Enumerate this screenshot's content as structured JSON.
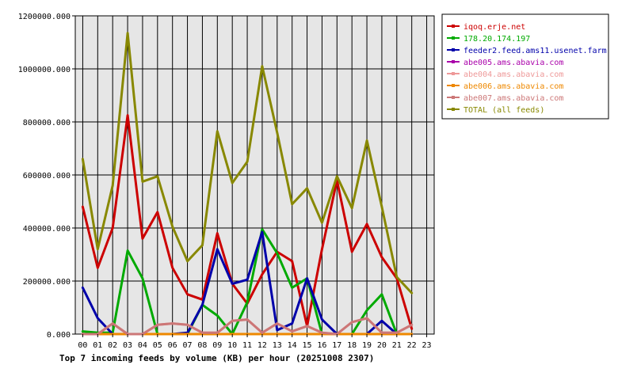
{
  "chart_data": {
    "type": "line",
    "title": "Top 7 incoming feeds by volume (KB) per hour (20251008 2307)",
    "categories": [
      "00",
      "01",
      "02",
      "03",
      "04",
      "05",
      "06",
      "07",
      "08",
      "09",
      "10",
      "11",
      "12",
      "13",
      "14",
      "15",
      "16",
      "17",
      "18",
      "19",
      "20",
      "21",
      "22",
      "23"
    ],
    "y_tick_labels": [
      "0.000",
      "200000.000",
      "400000.000",
      "600000.000",
      "800000.000",
      "1000000.000",
      "1200000.000"
    ],
    "ylim": [
      0,
      1200000
    ],
    "grid": true,
    "legend_position": "right",
    "series": [
      {
        "name": "iqoq.erje.net",
        "color": "#cc0000",
        "values": [
          480000,
          250000,
          400000,
          825000,
          360000,
          460000,
          250000,
          150000,
          130000,
          380000,
          190000,
          115000,
          225000,
          310000,
          275000,
          30000,
          320000,
          580000,
          310000,
          415000,
          290000,
          210000,
          20000,
          null
        ]
      },
      {
        "name": "178.20.174.197",
        "color": "#00aa00",
        "values": [
          10000,
          5000,
          5000,
          315000,
          210000,
          0,
          0,
          0,
          110000,
          70000,
          0,
          120000,
          395000,
          305000,
          175000,
          210000,
          0,
          0,
          0,
          90000,
          150000,
          0,
          0,
          null
        ]
      },
      {
        "name": "feeder2.feed.ams11.usenet.farm",
        "color": "#0000aa",
        "values": [
          175000,
          60000,
          0,
          0,
          0,
          0,
          0,
          5000,
          110000,
          320000,
          190000,
          205000,
          385000,
          15000,
          40000,
          210000,
          55000,
          0,
          0,
          0,
          50000,
          0,
          0,
          null
        ]
      },
      {
        "name": "abe005.ams.abavia.com",
        "color": "#aa00aa",
        "values": [
          0,
          0,
          0,
          0,
          0,
          0,
          0,
          0,
          0,
          0,
          0,
          0,
          0,
          0,
          0,
          0,
          0,
          0,
          0,
          0,
          0,
          0,
          0,
          null
        ]
      },
      {
        "name": "abe004.ams.abavia.com",
        "color": "#ee9999",
        "values": [
          0,
          0,
          40000,
          0,
          0,
          35000,
          40000,
          35000,
          5000,
          5000,
          50000,
          55000,
          5000,
          40000,
          10000,
          30000,
          5000,
          0,
          45000,
          60000,
          5000,
          5000,
          35000,
          null
        ]
      },
      {
        "name": "abe006.ams.abavia.com",
        "color": "#ee8800",
        "values": [
          0,
          0,
          0,
          0,
          0,
          0,
          0,
          0,
          0,
          0,
          0,
          0,
          0,
          0,
          0,
          0,
          0,
          0,
          0,
          0,
          0,
          0,
          0,
          null
        ]
      },
      {
        "name": "abe007.ams.abavia.com",
        "color": "#cc7777",
        "values": [
          0,
          0,
          40000,
          0,
          0,
          35000,
          40000,
          35000,
          5000,
          5000,
          50000,
          55000,
          5000,
          40000,
          10000,
          30000,
          5000,
          0,
          45000,
          60000,
          5000,
          5000,
          35000,
          null
        ]
      },
      {
        "name": "TOTAL (all feeds)",
        "color": "#888800",
        "values": [
          660000,
          320000,
          560000,
          1135000,
          575000,
          595000,
          405000,
          275000,
          335000,
          765000,
          570000,
          650000,
          1010000,
          760000,
          490000,
          550000,
          420000,
          595000,
          475000,
          730000,
          480000,
          215000,
          155000,
          null
        ]
      }
    ]
  }
}
